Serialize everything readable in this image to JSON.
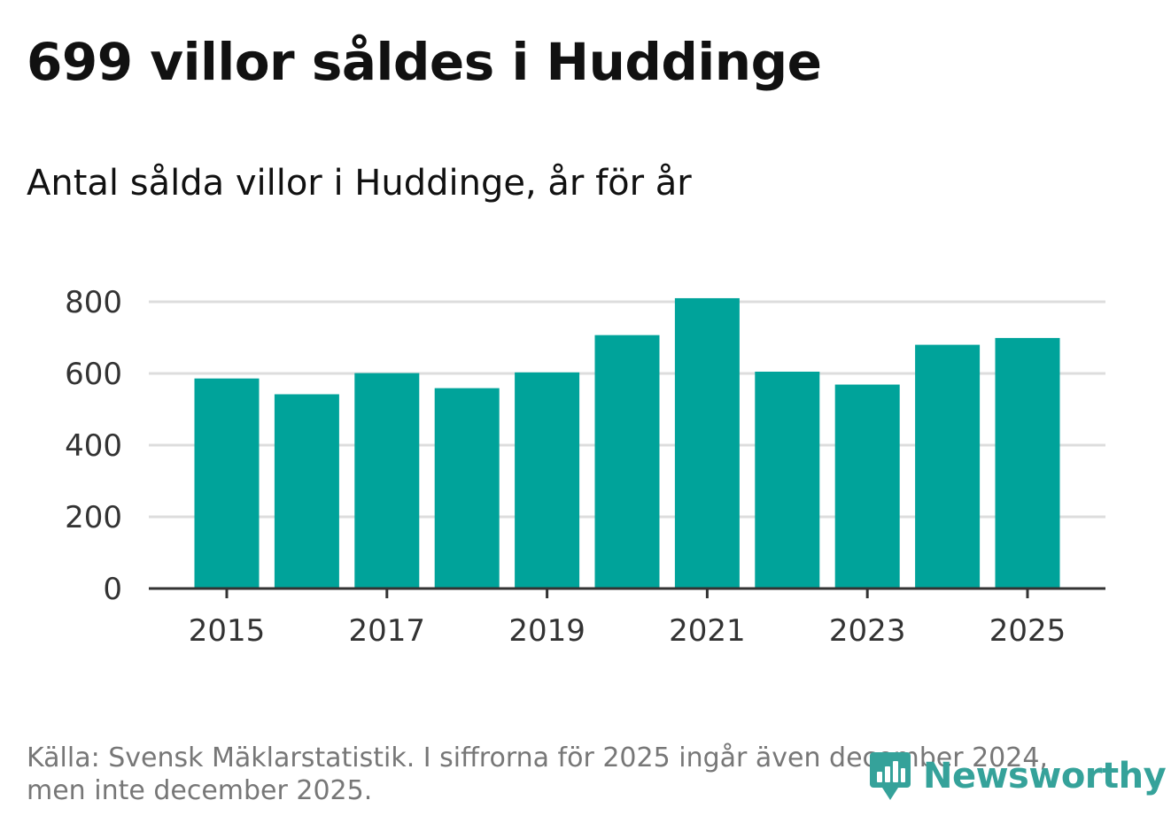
{
  "title": "699 villor såldes i Huddinge",
  "subtitle": "Antal sålda villor i Huddinge, år för år",
  "footer": {
    "source_line1": "Källa: Svensk Mäklarstatistik. I siffrorna för 2025 ingår även december 2024,",
    "source_line2": "men inte december 2025."
  },
  "logo": {
    "text": "Newsworthy",
    "icon": "newsworthy-logo-icon",
    "color": "#35a29a"
  },
  "colors": {
    "bar": "#00a39a",
    "grid": "#dddddd",
    "axis": "#333333"
  },
  "chart_data": {
    "type": "bar",
    "title": "699 villor såldes i Huddinge",
    "subtitle": "Antal sålda villor i Huddinge, år för år",
    "xlabel": "",
    "ylabel": "",
    "categories": [
      "2015",
      "2016",
      "2017",
      "2018",
      "2019",
      "2020",
      "2021",
      "2022",
      "2023",
      "2024",
      "2025"
    ],
    "values": [
      586,
      542,
      601,
      559,
      603,
      707,
      810,
      605,
      569,
      680,
      699
    ],
    "x_tick_labels": [
      "2015",
      "2017",
      "2019",
      "2021",
      "2023",
      "2025"
    ],
    "y_ticks": [
      0,
      200,
      400,
      600,
      800
    ],
    "y_tick_labels": [
      "0",
      "200",
      "400",
      "600",
      "800"
    ],
    "ylim": [
      0,
      800
    ],
    "grid": true
  }
}
